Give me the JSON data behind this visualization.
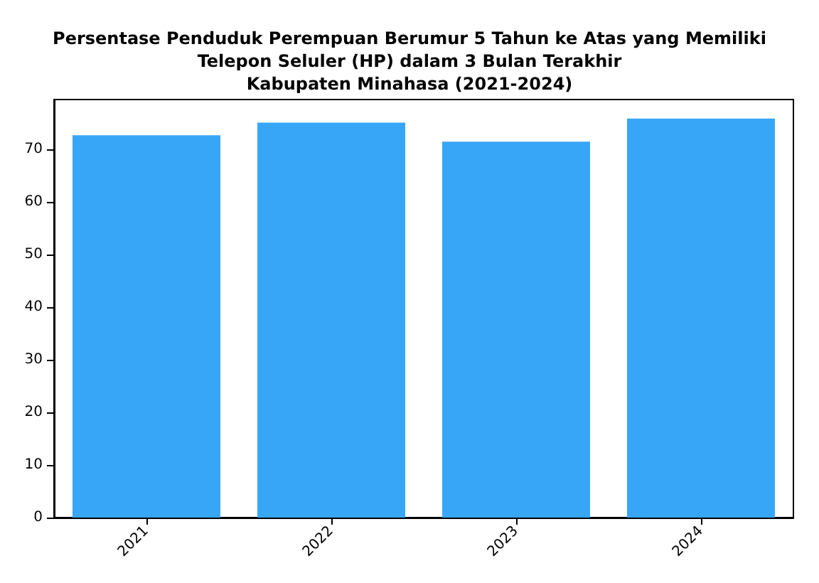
{
  "chart_data": {
    "type": "bar",
    "title": "Persentase Penduduk Perempuan Berumur 5 Tahun ke Atas yang Memiliki\nTelepon Seluler (HP) dalam 3 Bulan Terakhir\nKabupaten Minahasa (2021-2024)",
    "categories": [
      "2021",
      "2022",
      "2023",
      "2024"
    ],
    "values": [
      72.7,
      75.1,
      71.5,
      75.9
    ],
    "color": "#38a6f7",
    "ylim": [
      0,
      79.5
    ],
    "yticks": [
      0,
      10,
      20,
      30,
      40,
      50,
      60,
      70
    ],
    "grid": false
  }
}
